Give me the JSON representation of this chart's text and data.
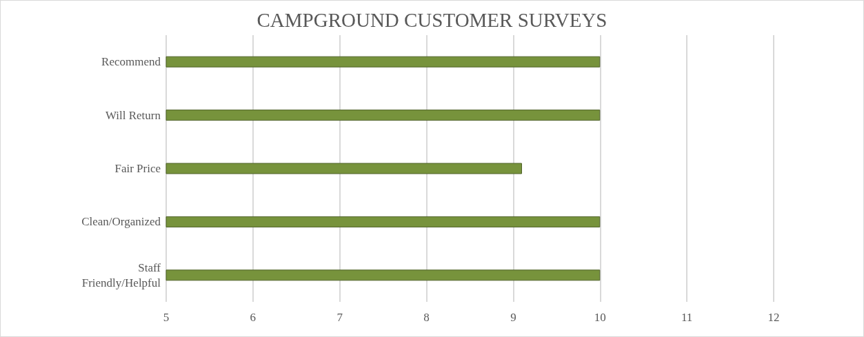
{
  "chart_data": {
    "type": "bar",
    "orientation": "horizontal",
    "title": "CAMPGROUND CUSTOMER SURVEYS",
    "categories": [
      "Recommend",
      "Will Return",
      "Fair Price",
      "Clean/Organized",
      "Staff\nFriendly/Helpful"
    ],
    "values": [
      10,
      10,
      9.1,
      10,
      10
    ],
    "color": "#77933c",
    "xlim": [
      5,
      12
    ],
    "xticks": [
      5,
      6,
      7,
      8,
      9,
      10,
      11,
      12
    ],
    "grid": "x"
  }
}
